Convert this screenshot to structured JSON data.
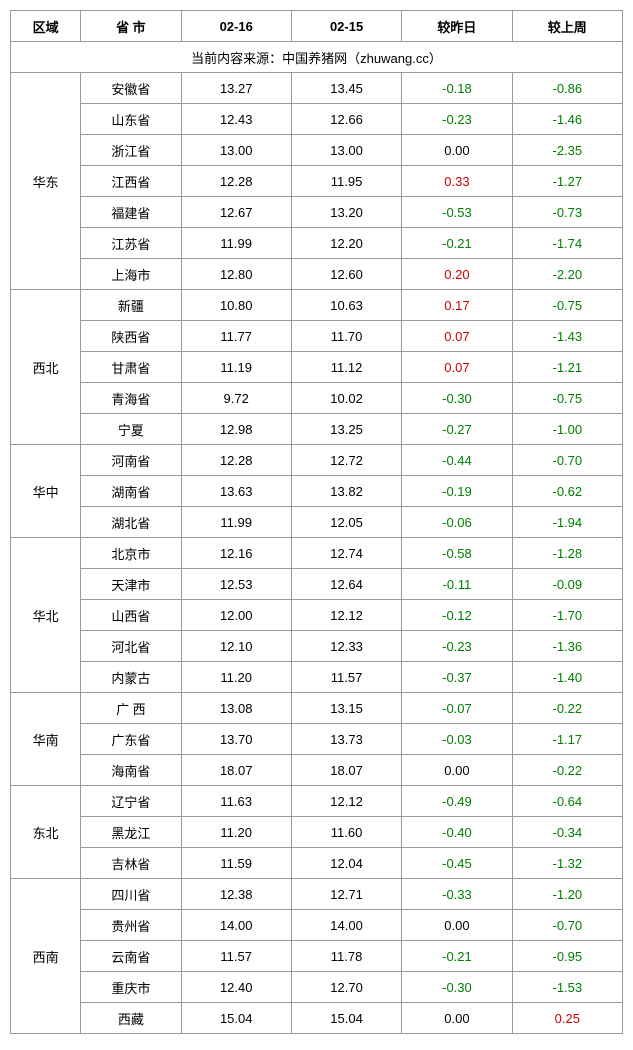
{
  "headers": {
    "region": "区域",
    "province": "省 市",
    "date1": "02-16",
    "date2": "02-15",
    "vs_yesterday": "较昨日",
    "vs_lastweek": "较上周"
  },
  "source_text": "当前内容来源：中国养猪网（zhuwang.cc）",
  "regions": [
    {
      "name": "华东",
      "rows": [
        {
          "province": "安徽省",
          "d1": "13.27",
          "d2": "13.45",
          "c1": "-0.18",
          "c2": "-0.86"
        },
        {
          "province": "山东省",
          "d1": "12.43",
          "d2": "12.66",
          "c1": "-0.23",
          "c2": "-1.46"
        },
        {
          "province": "浙江省",
          "d1": "13.00",
          "d2": "13.00",
          "c1": "0.00",
          "c2": "-2.35"
        },
        {
          "province": "江西省",
          "d1": "12.28",
          "d2": "11.95",
          "c1": "0.33",
          "c2": "-1.27"
        },
        {
          "province": "福建省",
          "d1": "12.67",
          "d2": "13.20",
          "c1": "-0.53",
          "c2": "-0.73"
        },
        {
          "province": "江苏省",
          "d1": "11.99",
          "d2": "12.20",
          "c1": "-0.21",
          "c2": "-1.74"
        },
        {
          "province": "上海市",
          "d1": "12.80",
          "d2": "12.60",
          "c1": "0.20",
          "c2": "-2.20"
        }
      ]
    },
    {
      "name": "西北",
      "rows": [
        {
          "province": "新疆",
          "d1": "10.80",
          "d2": "10.63",
          "c1": "0.17",
          "c2": "-0.75"
        },
        {
          "province": "陕西省",
          "d1": "11.77",
          "d2": "11.70",
          "c1": "0.07",
          "c2": "-1.43"
        },
        {
          "province": "甘肃省",
          "d1": "11.19",
          "d2": "11.12",
          "c1": "0.07",
          "c2": "-1.21"
        },
        {
          "province": "青海省",
          "d1": "9.72",
          "d2": "10.02",
          "c1": "-0.30",
          "c2": "-0.75"
        },
        {
          "province": "宁夏",
          "d1": "12.98",
          "d2": "13.25",
          "c1": "-0.27",
          "c2": "-1.00"
        }
      ]
    },
    {
      "name": "华中",
      "rows": [
        {
          "province": "河南省",
          "d1": "12.28",
          "d2": "12.72",
          "c1": "-0.44",
          "c2": "-0.70"
        },
        {
          "province": "湖南省",
          "d1": "13.63",
          "d2": "13.82",
          "c1": "-0.19",
          "c2": "-0.62"
        },
        {
          "province": "湖北省",
          "d1": "11.99",
          "d2": "12.05",
          "c1": "-0.06",
          "c2": "-1.94"
        }
      ]
    },
    {
      "name": "华北",
      "rows": [
        {
          "province": "北京市",
          "d1": "12.16",
          "d2": "12.74",
          "c1": "-0.58",
          "c2": "-1.28"
        },
        {
          "province": "天津市",
          "d1": "12.53",
          "d2": "12.64",
          "c1": "-0.11",
          "c2": "-0.09"
        },
        {
          "province": "山西省",
          "d1": "12.00",
          "d2": "12.12",
          "c1": "-0.12",
          "c2": "-1.70"
        },
        {
          "province": "河北省",
          "d1": "12.10",
          "d2": "12.33",
          "c1": "-0.23",
          "c2": "-1.36"
        },
        {
          "province": "内蒙古",
          "d1": "11.20",
          "d2": "11.57",
          "c1": "-0.37",
          "c2": "-1.40"
        }
      ]
    },
    {
      "name": "华南",
      "rows": [
        {
          "province": "广 西",
          "d1": "13.08",
          "d2": "13.15",
          "c1": "-0.07",
          "c2": "-0.22"
        },
        {
          "province": "广东省",
          "d1": "13.70",
          "d2": "13.73",
          "c1": "-0.03",
          "c2": "-1.17"
        },
        {
          "province": "海南省",
          "d1": "18.07",
          "d2": "18.07",
          "c1": "0.00",
          "c2": "-0.22"
        }
      ]
    },
    {
      "name": "东北",
      "rows": [
        {
          "province": "辽宁省",
          "d1": "11.63",
          "d2": "12.12",
          "c1": "-0.49",
          "c2": "-0.64"
        },
        {
          "province": "黑龙江",
          "d1": "11.20",
          "d2": "11.60",
          "c1": "-0.40",
          "c2": "-0.34"
        },
        {
          "province": "吉林省",
          "d1": "11.59",
          "d2": "12.04",
          "c1": "-0.45",
          "c2": "-1.32"
        }
      ]
    },
    {
      "name": "西南",
      "rows": [
        {
          "province": "四川省",
          "d1": "12.38",
          "d2": "12.71",
          "c1": "-0.33",
          "c2": "-1.20"
        },
        {
          "province": "贵州省",
          "d1": "14.00",
          "d2": "14.00",
          "c1": "0.00",
          "c2": "-0.70"
        },
        {
          "province": "云南省",
          "d1": "11.57",
          "d2": "11.78",
          "c1": "-0.21",
          "c2": "-0.95"
        },
        {
          "province": "重庆市",
          "d1": "12.40",
          "d2": "12.70",
          "c1": "-0.30",
          "c2": "-1.53"
        },
        {
          "province": "西藏",
          "d1": "15.04",
          "d2": "15.04",
          "c1": "0.00",
          "c2": "0.25"
        }
      ]
    }
  ]
}
